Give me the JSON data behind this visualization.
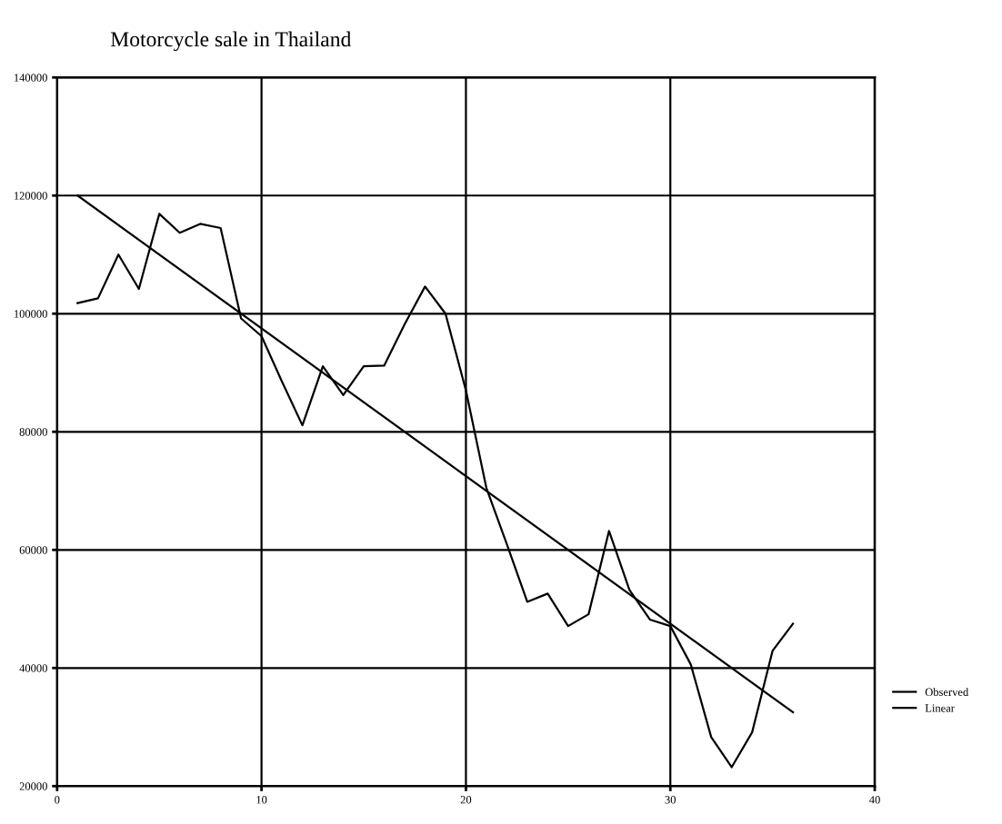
{
  "chart_data": {
    "type": "line",
    "title": "Motorcycle sale in Thailand",
    "series": [
      {
        "name": "Observed",
        "color": "#000000",
        "x": [
          1,
          2,
          3,
          4,
          5,
          6,
          7,
          8,
          9,
          10,
          11,
          12,
          13,
          14,
          15,
          16,
          17,
          18,
          19,
          20,
          21,
          22,
          23,
          24,
          25,
          26,
          27,
          28,
          29,
          30,
          31,
          32,
          33,
          34,
          35,
          36
        ],
        "values": [
          101800,
          102600,
          110000,
          104200,
          116900,
          113700,
          115200,
          114500,
          99200,
          96200,
          88500,
          81100,
          91100,
          86200,
          91100,
          91200,
          98200,
          104600,
          100000,
          87000,
          70500,
          61000,
          51200,
          52600,
          47100,
          49100,
          63200,
          53200,
          48200,
          47100,
          40600,
          28300,
          23200,
          29100,
          42900,
          47500
        ]
      },
      {
        "name": "Linear",
        "color": "#000000",
        "x": [
          1,
          36
        ],
        "values": [
          120000,
          32500
        ]
      }
    ],
    "xlim": [
      0,
      40
    ],
    "xticks": [
      0,
      10,
      20,
      30,
      40
    ],
    "ylim": [
      20000,
      140000
    ],
    "yticks": [
      20000,
      40000,
      60000,
      80000,
      100000,
      120000,
      140000
    ],
    "grid": true,
    "legend": "right"
  }
}
